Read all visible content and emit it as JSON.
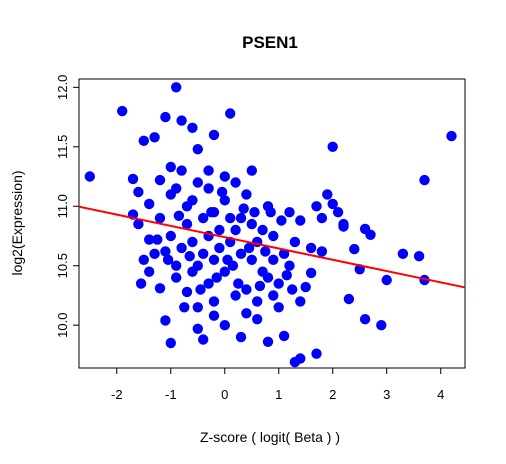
{
  "chart_data": {
    "type": "scatter",
    "title": "PSEN1",
    "xlabel": "Z-score ( logit( Beta ) )",
    "ylabel": "log2(Expression)",
    "xlim": [
      -2.7,
      4.45
    ],
    "ylim": [
      9.64,
      12.07
    ],
    "xticks": [
      -2,
      -1,
      0,
      1,
      2,
      3,
      4
    ],
    "yticks": [
      10.0,
      10.5,
      11.0,
      11.5,
      12.0
    ],
    "xtick_labels": [
      "-2",
      "-1",
      "0",
      "1",
      "2",
      "3",
      "4"
    ],
    "ytick_labels": [
      "10.0",
      "10.5",
      "11.0",
      "11.5",
      "12.0"
    ],
    "grid": false,
    "legend": "none",
    "point_color": "#0000ff",
    "regression_line": {
      "color": "#ff0000",
      "intercept": 10.74,
      "slope": -0.095
    },
    "points": [
      [
        -2.5,
        11.25
      ],
      [
        -1.9,
        11.8
      ],
      [
        -1.7,
        11.23
      ],
      [
        -1.7,
        10.93
      ],
      [
        -1.6,
        11.12
      ],
      [
        -1.5,
        11.55
      ],
      [
        -1.4,
        11.02
      ],
      [
        -1.4,
        10.72
      ],
      [
        -1.3,
        11.58
      ],
      [
        -1.2,
        11.22
      ],
      [
        -1.1,
        11.75
      ],
      [
        -1.0,
        11.33
      ],
      [
        -0.9,
        12.0
      ],
      [
        -0.8,
        11.72
      ],
      [
        -0.6,
        11.66
      ],
      [
        -0.5,
        11.48
      ],
      [
        -0.2,
        11.6
      ],
      [
        0.1,
        11.78
      ],
      [
        0.5,
        11.3
      ],
      [
        2.0,
        11.5
      ],
      [
        4.2,
        11.59
      ],
      [
        3.7,
        11.22
      ],
      [
        3.7,
        10.38
      ],
      [
        3.6,
        10.58
      ],
      [
        3.3,
        10.6
      ],
      [
        3.0,
        10.38
      ],
      [
        2.7,
        10.76
      ],
      [
        2.6,
        10.81
      ],
      [
        2.4,
        10.64
      ],
      [
        2.2,
        10.83
      ],
      [
        2.0,
        11.02
      ],
      [
        1.9,
        11.1
      ],
      [
        2.1,
        10.95
      ],
      [
        1.8,
        10.9
      ],
      [
        1.6,
        10.44
      ],
      [
        1.5,
        10.32
      ],
      [
        2.3,
        10.22
      ],
      [
        2.5,
        10.47
      ],
      [
        2.6,
        10.05
      ],
      [
        2.9,
        10.0
      ],
      [
        1.7,
        9.76
      ],
      [
        1.4,
        9.72
      ],
      [
        1.3,
        9.69
      ],
      [
        1.1,
        9.91
      ],
      [
        0.8,
        9.86
      ],
      [
        0.6,
        10.05
      ],
      [
        0.3,
        9.9
      ],
      [
        0.0,
        10.0
      ],
      [
        -0.2,
        10.08
      ],
      [
        -0.4,
        9.88
      ],
      [
        -0.5,
        9.97
      ],
      [
        -1.0,
        9.85
      ],
      [
        -1.1,
        10.04
      ],
      [
        -0.9,
        10.5
      ],
      [
        -1.2,
        10.31
      ],
      [
        -1.3,
        10.6
      ],
      [
        -1.5,
        10.55
      ],
      [
        -1.6,
        10.85
      ],
      [
        -1.2,
        10.9
      ],
      [
        -1.0,
        11.1
      ],
      [
        -0.8,
        11.3
      ],
      [
        -0.7,
        11.0
      ],
      [
        -0.5,
        11.2
      ],
      [
        -0.3,
        11.15
      ],
      [
        -0.2,
        10.95
      ],
      [
        0.0,
        11.05
      ],
      [
        0.2,
        11.2
      ],
      [
        0.3,
        10.9
      ],
      [
        0.5,
        10.85
      ],
      [
        0.7,
        10.8
      ],
      [
        0.9,
        10.75
      ],
      [
        1.1,
        10.6
      ],
      [
        1.2,
        10.5
      ],
      [
        1.0,
        10.35
      ],
      [
        0.8,
        10.4
      ],
      [
        0.6,
        10.2
      ],
      [
        0.4,
        10.3
      ],
      [
        0.2,
        10.25
      ],
      [
        0.0,
        10.45
      ],
      [
        -0.2,
        10.55
      ],
      [
        -0.4,
        10.6
      ],
      [
        -0.6,
        10.7
      ],
      [
        -0.8,
        10.65
      ],
      [
        -1.0,
        10.75
      ],
      [
        -1.1,
        10.62
      ],
      [
        -0.9,
        10.4
      ],
      [
        -0.7,
        10.28
      ],
      [
        -0.5,
        10.15
      ],
      [
        -0.3,
        10.35
      ],
      [
        -0.1,
        10.65
      ],
      [
        0.1,
        10.7
      ],
      [
        0.3,
        10.6
      ],
      [
        0.5,
        10.55
      ],
      [
        0.7,
        10.45
      ],
      [
        0.9,
        10.55
      ],
      [
        1.3,
        10.7
      ],
      [
        1.4,
        10.88
      ],
      [
        1.6,
        10.65
      ],
      [
        1.2,
        10.95
      ],
      [
        0.8,
        11.0
      ],
      [
        0.4,
        11.1
      ],
      [
        0.1,
        10.9
      ],
      [
        -0.1,
        10.8
      ],
      [
        -0.4,
        10.9
      ],
      [
        -0.6,
        11.05
      ],
      [
        -0.9,
        11.15
      ],
      [
        -0.7,
        10.85
      ],
      [
        -0.3,
        10.75
      ],
      [
        0.2,
        10.8
      ],
      [
        0.6,
        10.7
      ],
      [
        -1.4,
        10.45
      ],
      [
        -0.2,
        10.2
      ],
      [
        0.4,
        10.1
      ],
      [
        1.0,
        10.15
      ],
      [
        -0.6,
        10.45
      ],
      [
        0.0,
        11.25
      ],
      [
        -0.3,
        11.3
      ],
      [
        0.35,
        10.98
      ],
      [
        -0.05,
        11.12
      ],
      [
        -0.5,
        10.5
      ],
      [
        0.15,
        10.5
      ],
      [
        0.75,
        10.62
      ],
      [
        1.05,
        10.88
      ],
      [
        -0.85,
        10.92
      ],
      [
        -1.25,
        10.72
      ],
      [
        -1.55,
        10.35
      ],
      [
        0.55,
        10.95
      ],
      [
        0.9,
        10.25
      ],
      [
        -0.15,
        10.4
      ],
      [
        1.8,
        10.62
      ],
      [
        1.4,
        10.2
      ],
      [
        2.2,
        10.85
      ],
      [
        1.7,
        11.0
      ],
      [
        -0.45,
        10.3
      ],
      [
        0.25,
        10.35
      ],
      [
        -0.75,
        10.15
      ],
      [
        0.65,
        10.33
      ],
      [
        1.15,
        10.42
      ],
      [
        -1.05,
        10.55
      ],
      [
        0.45,
        10.65
      ],
      [
        -0.25,
        10.95
      ],
      [
        0.05,
        10.55
      ],
      [
        -0.65,
        10.58
      ],
      [
        0.85,
        10.95
      ],
      [
        1.25,
        10.3
      ]
    ]
  }
}
